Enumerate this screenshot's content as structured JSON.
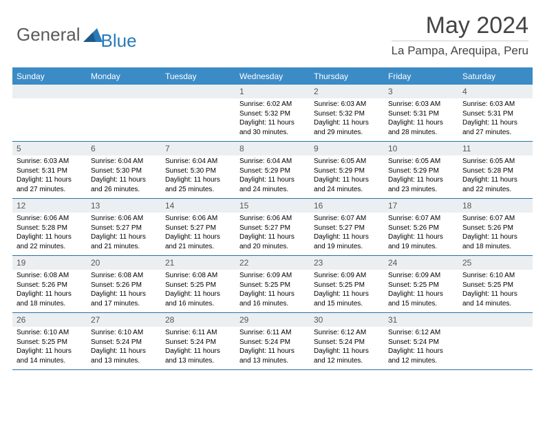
{
  "brand": {
    "part1": "General",
    "part2": "Blue"
  },
  "title": "May 2024",
  "location": "La Pampa, Arequipa, Peru",
  "colors": {
    "header_bg": "#3b8bc6",
    "row_border": "#2a6fa0",
    "daynum_bg": "#eceff1",
    "text": "#000000",
    "muted": "#555555"
  },
  "weekdays": [
    "Sunday",
    "Monday",
    "Tuesday",
    "Wednesday",
    "Thursday",
    "Friday",
    "Saturday"
  ],
  "weeks": [
    [
      null,
      null,
      null,
      {
        "n": "1",
        "sr": "6:02 AM",
        "ss": "5:32 PM",
        "dl": "11 hours and 30 minutes."
      },
      {
        "n": "2",
        "sr": "6:03 AM",
        "ss": "5:32 PM",
        "dl": "11 hours and 29 minutes."
      },
      {
        "n": "3",
        "sr": "6:03 AM",
        "ss": "5:31 PM",
        "dl": "11 hours and 28 minutes."
      },
      {
        "n": "4",
        "sr": "6:03 AM",
        "ss": "5:31 PM",
        "dl": "11 hours and 27 minutes."
      }
    ],
    [
      {
        "n": "5",
        "sr": "6:03 AM",
        "ss": "5:31 PM",
        "dl": "11 hours and 27 minutes."
      },
      {
        "n": "6",
        "sr": "6:04 AM",
        "ss": "5:30 PM",
        "dl": "11 hours and 26 minutes."
      },
      {
        "n": "7",
        "sr": "6:04 AM",
        "ss": "5:30 PM",
        "dl": "11 hours and 25 minutes."
      },
      {
        "n": "8",
        "sr": "6:04 AM",
        "ss": "5:29 PM",
        "dl": "11 hours and 24 minutes."
      },
      {
        "n": "9",
        "sr": "6:05 AM",
        "ss": "5:29 PM",
        "dl": "11 hours and 24 minutes."
      },
      {
        "n": "10",
        "sr": "6:05 AM",
        "ss": "5:29 PM",
        "dl": "11 hours and 23 minutes."
      },
      {
        "n": "11",
        "sr": "6:05 AM",
        "ss": "5:28 PM",
        "dl": "11 hours and 22 minutes."
      }
    ],
    [
      {
        "n": "12",
        "sr": "6:06 AM",
        "ss": "5:28 PM",
        "dl": "11 hours and 22 minutes."
      },
      {
        "n": "13",
        "sr": "6:06 AM",
        "ss": "5:27 PM",
        "dl": "11 hours and 21 minutes."
      },
      {
        "n": "14",
        "sr": "6:06 AM",
        "ss": "5:27 PM",
        "dl": "11 hours and 21 minutes."
      },
      {
        "n": "15",
        "sr": "6:06 AM",
        "ss": "5:27 PM",
        "dl": "11 hours and 20 minutes."
      },
      {
        "n": "16",
        "sr": "6:07 AM",
        "ss": "5:27 PM",
        "dl": "11 hours and 19 minutes."
      },
      {
        "n": "17",
        "sr": "6:07 AM",
        "ss": "5:26 PM",
        "dl": "11 hours and 19 minutes."
      },
      {
        "n": "18",
        "sr": "6:07 AM",
        "ss": "5:26 PM",
        "dl": "11 hours and 18 minutes."
      }
    ],
    [
      {
        "n": "19",
        "sr": "6:08 AM",
        "ss": "5:26 PM",
        "dl": "11 hours and 18 minutes."
      },
      {
        "n": "20",
        "sr": "6:08 AM",
        "ss": "5:26 PM",
        "dl": "11 hours and 17 minutes."
      },
      {
        "n": "21",
        "sr": "6:08 AM",
        "ss": "5:25 PM",
        "dl": "11 hours and 16 minutes."
      },
      {
        "n": "22",
        "sr": "6:09 AM",
        "ss": "5:25 PM",
        "dl": "11 hours and 16 minutes."
      },
      {
        "n": "23",
        "sr": "6:09 AM",
        "ss": "5:25 PM",
        "dl": "11 hours and 15 minutes."
      },
      {
        "n": "24",
        "sr": "6:09 AM",
        "ss": "5:25 PM",
        "dl": "11 hours and 15 minutes."
      },
      {
        "n": "25",
        "sr": "6:10 AM",
        "ss": "5:25 PM",
        "dl": "11 hours and 14 minutes."
      }
    ],
    [
      {
        "n": "26",
        "sr": "6:10 AM",
        "ss": "5:25 PM",
        "dl": "11 hours and 14 minutes."
      },
      {
        "n": "27",
        "sr": "6:10 AM",
        "ss": "5:24 PM",
        "dl": "11 hours and 13 minutes."
      },
      {
        "n": "28",
        "sr": "6:11 AM",
        "ss": "5:24 PM",
        "dl": "11 hours and 13 minutes."
      },
      {
        "n": "29",
        "sr": "6:11 AM",
        "ss": "5:24 PM",
        "dl": "11 hours and 13 minutes."
      },
      {
        "n": "30",
        "sr": "6:12 AM",
        "ss": "5:24 PM",
        "dl": "11 hours and 12 minutes."
      },
      {
        "n": "31",
        "sr": "6:12 AM",
        "ss": "5:24 PM",
        "dl": "11 hours and 12 minutes."
      },
      null
    ]
  ],
  "labels": {
    "sunrise": "Sunrise: ",
    "sunset": "Sunset: ",
    "daylight": "Daylight: "
  }
}
